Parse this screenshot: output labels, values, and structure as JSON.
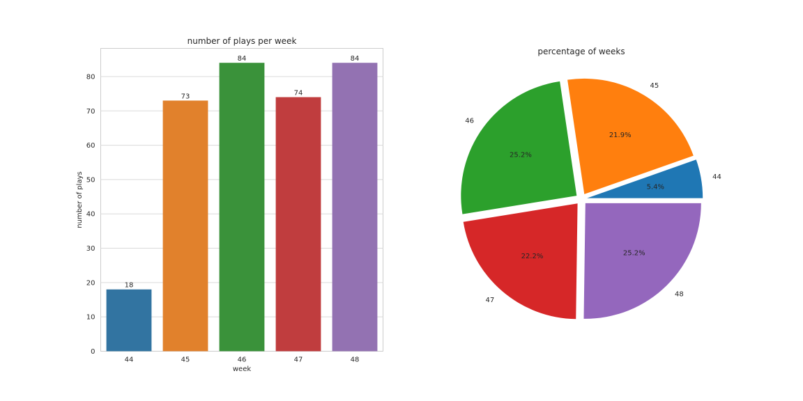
{
  "chart_data": [
    {
      "type": "bar",
      "title": "number of plays per week",
      "xlabel": "week",
      "ylabel": "number of plays",
      "categories": [
        "44",
        "45",
        "46",
        "47",
        "48"
      ],
      "values": [
        18,
        73,
        84,
        74,
        84
      ],
      "data_labels": [
        "18",
        "73",
        "84",
        "74",
        "84"
      ],
      "ylim": [
        0,
        88.2
      ],
      "yticks": [
        0,
        10,
        20,
        30,
        40,
        50,
        60,
        70,
        80
      ],
      "grid": true,
      "colors": [
        "#3274a1",
        "#e1812c",
        "#3a923a",
        "#c03d3e",
        "#9372b2"
      ]
    },
    {
      "type": "pie",
      "title": "percentage of weeks",
      "labels": [
        "44",
        "45",
        "46",
        "47",
        "48"
      ],
      "values": [
        18,
        73,
        84,
        74,
        84
      ],
      "percent_labels": [
        "5.4%",
        "21.9%",
        "25.2%",
        "22.2%",
        "25.2%"
      ],
      "explode": true,
      "colors": [
        "#1f77b4",
        "#ff7f0e",
        "#2ca02c",
        "#d62728",
        "#9467bd"
      ]
    }
  ]
}
